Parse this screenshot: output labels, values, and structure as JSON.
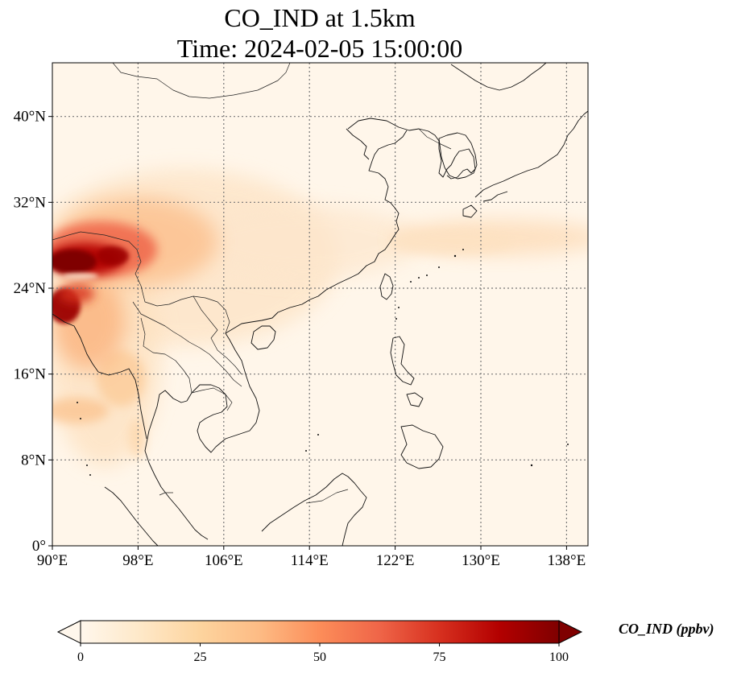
{
  "title": {
    "line1": "CO_IND at 1.5km",
    "line2": "Time: 2024-02-05 15:00:00"
  },
  "map": {
    "projection": "PlateCarree",
    "lon_range": [
      90,
      140
    ],
    "lat_range": [
      0,
      45
    ],
    "lon_ticks": [
      90,
      98,
      106,
      114,
      122,
      130,
      138
    ],
    "lat_ticks": [
      0,
      8,
      16,
      24,
      32,
      40
    ],
    "lon_tick_labels": [
      "90°E",
      "98°E",
      "106°E",
      "114°E",
      "122°E",
      "130°E",
      "138°E"
    ],
    "lat_tick_labels": [
      "0°",
      "8°N",
      "16°N",
      "24°N",
      "32°N",
      "40°N"
    ],
    "gridlines": "dotted",
    "colormap": "OrRd",
    "features": [
      "coastlines",
      "country-borders"
    ]
  },
  "colorbar": {
    "label": "CO_IND (ppbv)",
    "min": 0,
    "max": 100,
    "ticks": [
      0,
      25,
      50,
      75,
      100
    ],
    "tick_labels": [
      "0",
      "25",
      "50",
      "75",
      "100"
    ],
    "extend": "both",
    "orientation": "horizontal",
    "colors": [
      "#fff7ec",
      "#fee8c8",
      "#fdd49e",
      "#fdbb84",
      "#fc8d59",
      "#ef6548",
      "#d7301f",
      "#b30000",
      "#7f0000"
    ]
  }
}
